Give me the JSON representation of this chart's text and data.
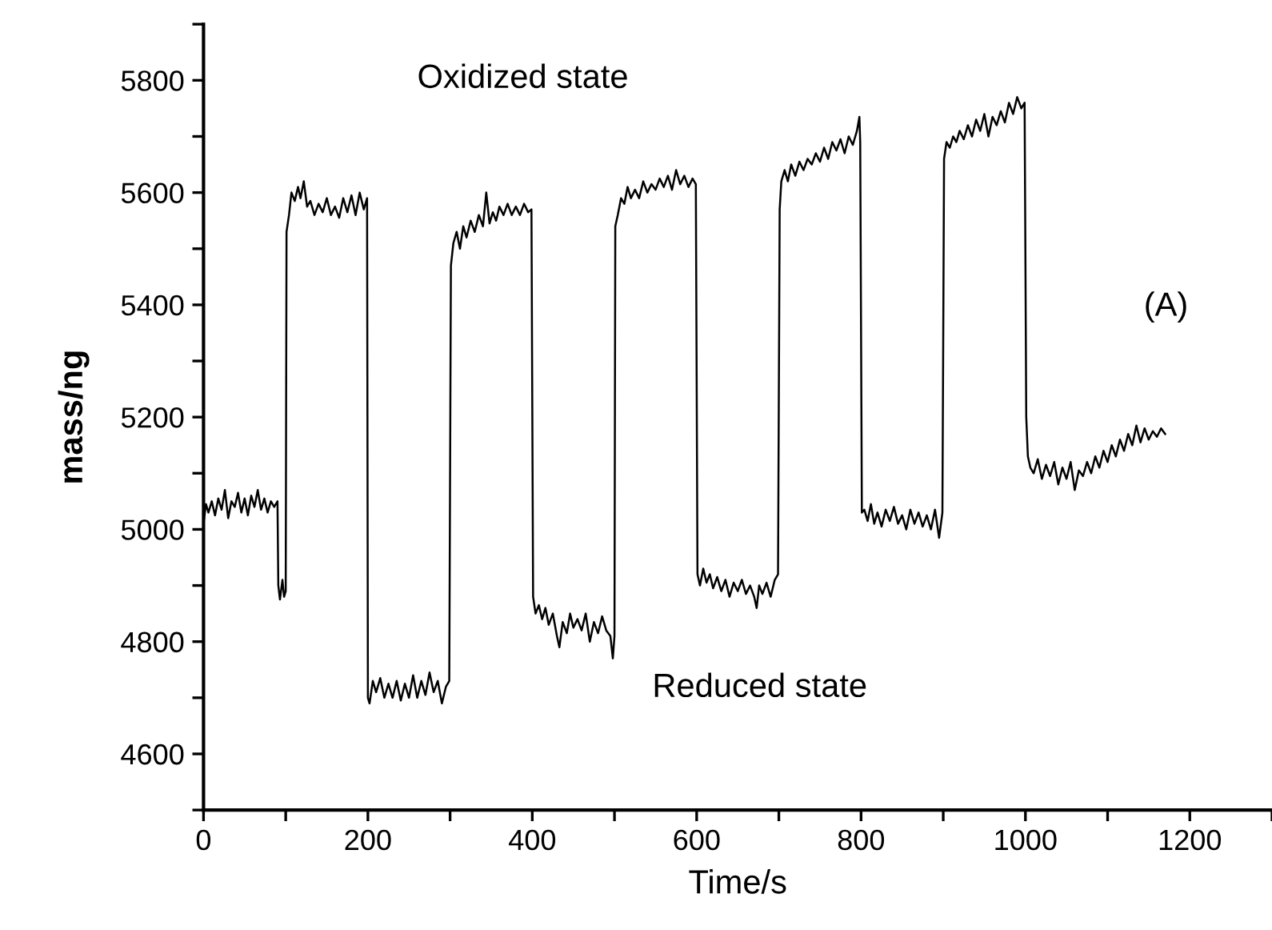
{
  "chart_data": {
    "type": "line",
    "xlabel": "Time/s",
    "ylabel": "mass/ng",
    "annotations": [
      "Oxidized state",
      "Reduced state",
      "(A)"
    ],
    "xlim": [
      0,
      1300
    ],
    "ylim": [
      4500,
      5900
    ],
    "xticks": [
      0,
      {
        "value": 100,
        "label": null
      },
      200,
      {
        "value": 300,
        "label": null
      },
      400,
      {
        "value": 500,
        "label": null
      },
      600,
      {
        "value": 700,
        "label": null
      },
      800,
      {
        "value": 900,
        "label": null
      },
      1000,
      {
        "value": 1100,
        "label": null
      },
      1200,
      {
        "value": 1300,
        "label": null
      }
    ],
    "yticks": [
      {
        "value": 4500,
        "label": null
      },
      4600,
      {
        "value": 4700,
        "label": null
      },
      4800,
      {
        "value": 4900,
        "label": null
      },
      5000,
      {
        "value": 5100,
        "label": null
      },
      5200,
      {
        "value": 5300,
        "label": null
      },
      5400,
      {
        "value": 5500,
        "label": null
      },
      5600,
      {
        "value": 5700,
        "label": null
      },
      5800,
      {
        "value": 5900,
        "label": null
      }
    ],
    "grid": false,
    "marker": "none",
    "line_style": "solid",
    "series": [
      {
        "color": "#000000",
        "x": [
          0,
          3,
          6,
          10,
          14,
          18,
          22,
          26,
          30,
          34,
          38,
          42,
          46,
          50,
          54,
          58,
          62,
          66,
          70,
          74,
          78,
          82,
          86,
          90,
          91,
          93,
          96,
          98,
          100,
          101,
          104,
          107,
          111,
          115,
          118,
          122,
          126,
          130,
          135,
          140,
          145,
          150,
          155,
          160,
          165,
          170,
          175,
          180,
          185,
          190,
          195,
          199,
          200,
          202,
          206,
          210,
          215,
          220,
          225,
          230,
          235,
          240,
          245,
          250,
          255,
          260,
          265,
          270,
          275,
          280,
          285,
          290,
          295,
          299,
          301,
          304,
          308,
          312,
          316,
          320,
          325,
          330,
          335,
          340,
          344,
          348,
          352,
          356,
          360,
          365,
          370,
          375,
          380,
          385,
          390,
          395,
          399,
          401,
          404,
          408,
          412,
          416,
          420,
          425,
          430,
          433,
          437,
          442,
          446,
          450,
          455,
          460,
          465,
          470,
          475,
          480,
          485,
          490,
          495,
          498,
          500,
          501,
          504,
          508,
          512,
          516,
          520,
          525,
          530,
          535,
          540,
          545,
          550,
          555,
          560,
          565,
          570,
          575,
          580,
          585,
          590,
          595,
          599,
          601,
          604,
          608,
          612,
          616,
          620,
          625,
          630,
          635,
          640,
          645,
          650,
          655,
          660,
          665,
          670,
          673,
          676,
          680,
          685,
          690,
          695,
          699,
          701,
          703,
          707,
          711,
          715,
          720,
          725,
          730,
          735,
          740,
          745,
          750,
          755,
          760,
          765,
          770,
          775,
          780,
          785,
          790,
          795,
          798,
          799,
          801,
          804,
          808,
          812,
          816,
          820,
          825,
          830,
          835,
          840,
          845,
          850,
          855,
          860,
          865,
          870,
          875,
          880,
          885,
          890,
          895,
          899,
          901,
          904,
          908,
          912,
          916,
          920,
          925,
          930,
          935,
          940,
          945,
          950,
          955,
          960,
          965,
          970,
          975,
          980,
          985,
          990,
          995,
          999,
          1001,
          1003,
          1006,
          1010,
          1015,
          1020,
          1025,
          1030,
          1035,
          1040,
          1045,
          1050,
          1055,
          1060,
          1065,
          1070,
          1075,
          1080,
          1085,
          1090,
          1095,
          1100,
          1105,
          1110,
          1115,
          1120,
          1125,
          1130,
          1135,
          1140,
          1145,
          1150,
          1155,
          1160,
          1165,
          1170
        ],
        "values": [
          5010,
          5045,
          5030,
          5050,
          5025,
          5055,
          5035,
          5070,
          5020,
          5050,
          5040,
          5065,
          5030,
          5055,
          5025,
          5060,
          5040,
          5070,
          5035,
          5055,
          5030,
          5050,
          5040,
          5050,
          4900,
          4875,
          4910,
          4880,
          4890,
          5530,
          5560,
          5600,
          5585,
          5610,
          5590,
          5620,
          5575,
          5585,
          5560,
          5580,
          5565,
          5590,
          5560,
          5575,
          5555,
          5590,
          5565,
          5595,
          5560,
          5600,
          5570,
          5590,
          4700,
          4690,
          4730,
          4710,
          4735,
          4700,
          4725,
          4700,
          4730,
          4695,
          4725,
          4700,
          4740,
          4700,
          4730,
          4705,
          4745,
          4710,
          4730,
          4690,
          4720,
          4730,
          5470,
          5510,
          5530,
          5500,
          5540,
          5520,
          5550,
          5530,
          5560,
          5540,
          5600,
          5545,
          5565,
          5550,
          5575,
          5560,
          5580,
          5560,
          5575,
          5560,
          5580,
          5565,
          5570,
          4880,
          4850,
          4865,
          4840,
          4860,
          4830,
          4850,
          4810,
          4790,
          4835,
          4815,
          4850,
          4825,
          4840,
          4820,
          4850,
          4800,
          4835,
          4815,
          4845,
          4820,
          4810,
          4770,
          4810,
          5540,
          5560,
          5590,
          5580,
          5610,
          5590,
          5605,
          5590,
          5620,
          5600,
          5615,
          5605,
          5625,
          5610,
          5630,
          5605,
          5640,
          5615,
          5630,
          5610,
          5625,
          5615,
          4920,
          4900,
          4930,
          4905,
          4920,
          4895,
          4915,
          4890,
          4910,
          4880,
          4905,
          4890,
          4910,
          4885,
          4900,
          4880,
          4860,
          4900,
          4885,
          4905,
          4880,
          4910,
          4920,
          5570,
          5620,
          5640,
          5620,
          5650,
          5630,
          5655,
          5640,
          5660,
          5650,
          5670,
          5655,
          5680,
          5660,
          5690,
          5675,
          5695,
          5670,
          5700,
          5685,
          5710,
          5735,
          5690,
          5030,
          5035,
          5015,
          5045,
          5010,
          5030,
          5005,
          5035,
          5015,
          5040,
          5010,
          5025,
          5000,
          5035,
          5010,
          5030,
          5005,
          5025,
          5000,
          5035,
          4985,
          5030,
          5660,
          5690,
          5680,
          5700,
          5690,
          5710,
          5695,
          5720,
          5700,
          5730,
          5710,
          5740,
          5700,
          5735,
          5720,
          5745,
          5725,
          5760,
          5740,
          5770,
          5750,
          5760,
          5200,
          5130,
          5110,
          5100,
          5125,
          5090,
          5115,
          5095,
          5120,
          5080,
          5110,
          5090,
          5120,
          5070,
          5105,
          5095,
          5120,
          5100,
          5130,
          5110,
          5140,
          5120,
          5150,
          5130,
          5160,
          5140,
          5170,
          5150,
          5185,
          5155,
          5180,
          5160,
          5175,
          5165,
          5180,
          5170
        ]
      }
    ]
  }
}
